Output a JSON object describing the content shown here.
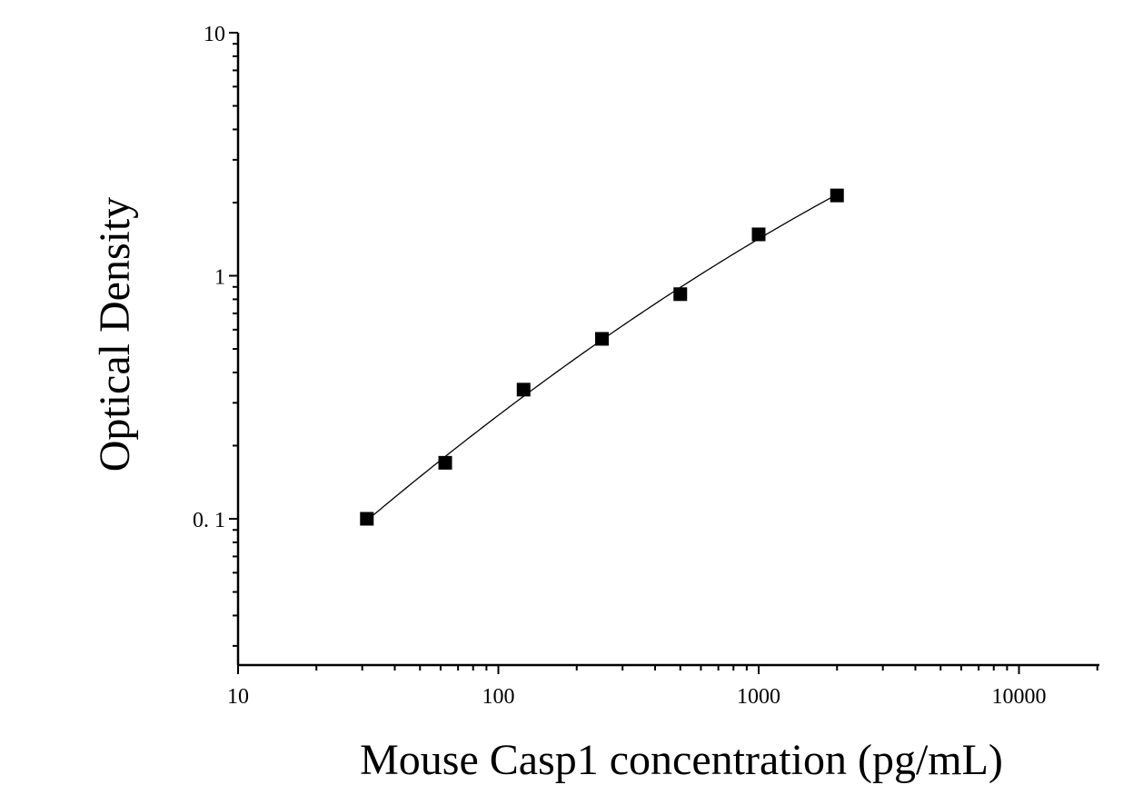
{
  "chart_data": {
    "type": "scatter",
    "xlabel": "Mouse Casp1 concentration (pg/mL)",
    "ylabel": "Optical Density",
    "x_scale": "log",
    "y_scale": "log",
    "xlim": [
      10,
      20000
    ],
    "ylim": [
      0.025,
      10
    ],
    "x_ticks": [
      10,
      100,
      1000,
      10000
    ],
    "x_tick_labels": [
      "10",
      "100",
      "1000",
      "10000"
    ],
    "y_ticks": [
      0.1,
      1,
      10
    ],
    "y_tick_labels": [
      "0. 1",
      "1",
      "10"
    ],
    "grid": false,
    "legend": "none",
    "series": [
      {
        "marker": "square",
        "color": "#000000",
        "x": [
          31.25,
          62.5,
          125,
          250,
          500,
          1000,
          2000
        ],
        "y": [
          0.1,
          0.17,
          0.34,
          0.55,
          0.84,
          1.48,
          2.14
        ]
      }
    ],
    "fit_curve": {
      "color": "#000000",
      "x_range": [
        31.25,
        2000
      ]
    }
  }
}
